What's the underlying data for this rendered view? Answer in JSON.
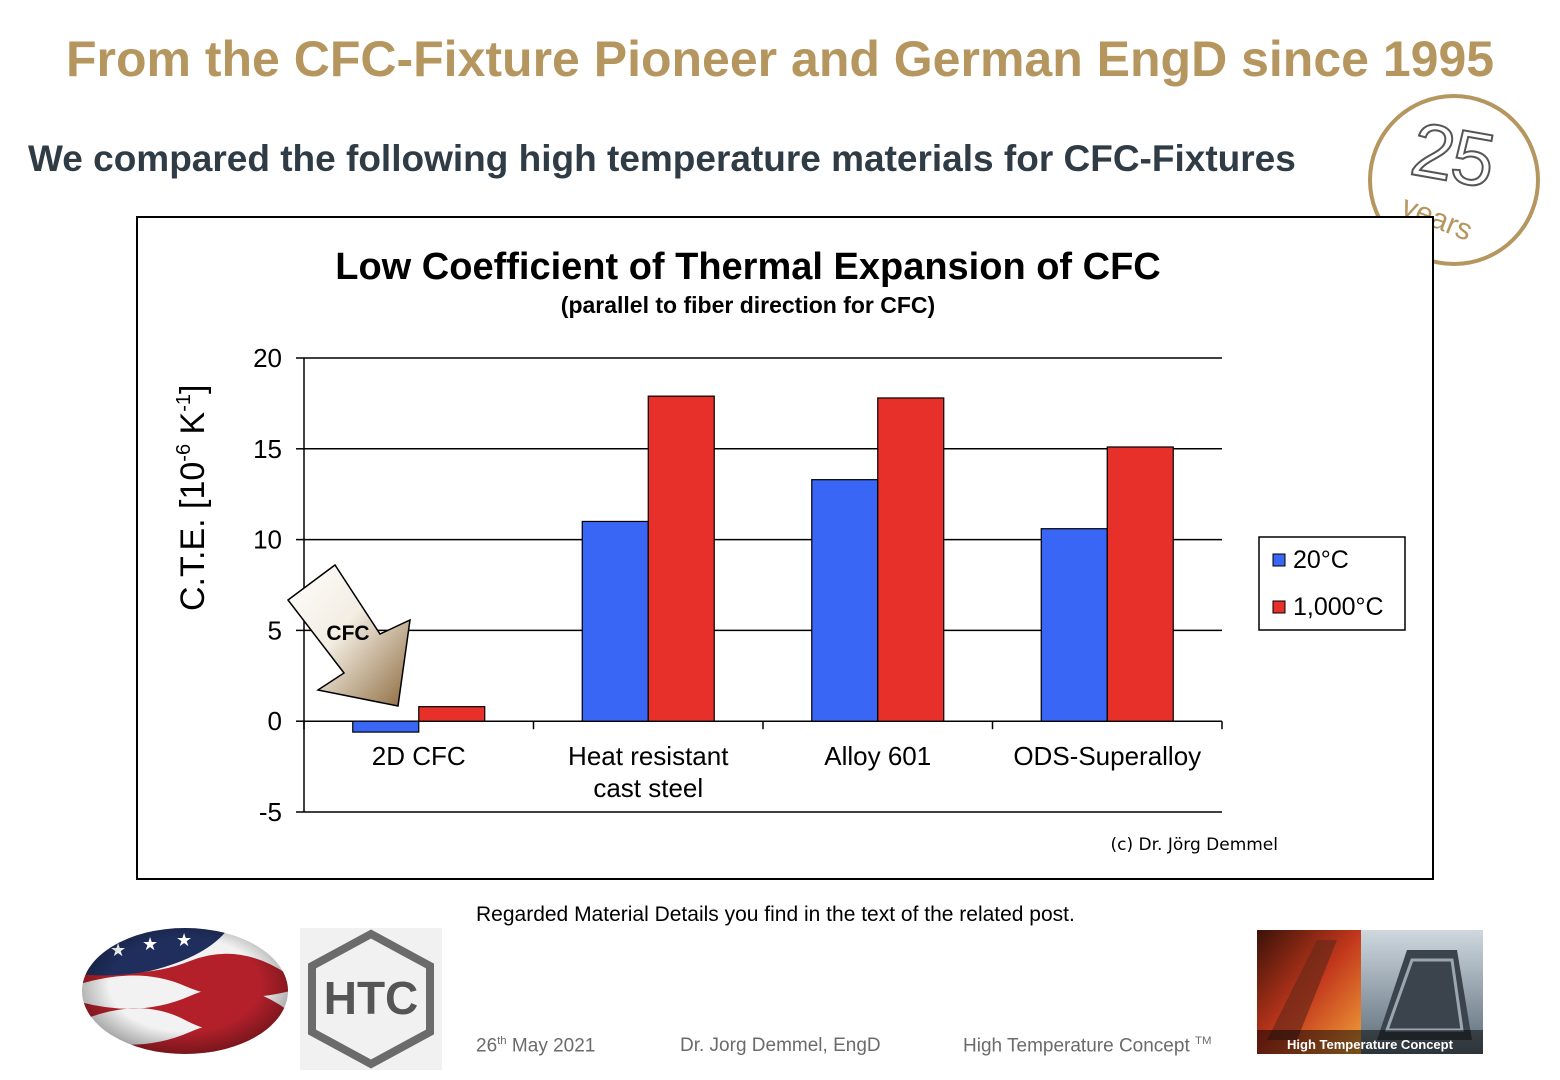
{
  "headline": "From the CFC-Fixture Pioneer and German EngD since 1995",
  "subheadline": "We compared the following high temperature materials for CFC-Fixtures",
  "badge": {
    "number": "25",
    "label": "years"
  },
  "chart_data": {
    "type": "bar",
    "title": "Low Coefficient of Thermal Expansion of CFC",
    "subtitle": "(parallel to fiber direction for CFC)",
    "ylabel_main": "C.T.E. [10",
    "ylabel_exp1": "-6",
    "ylabel_mid": " K",
    "ylabel_exp2": "-1",
    "ylabel_end": "]",
    "categories": [
      [
        "2D CFC"
      ],
      [
        "Heat resistant",
        "cast steel"
      ],
      [
        "Alloy 601"
      ],
      [
        "ODS-Superalloy"
      ]
    ],
    "series": [
      {
        "name": "20°C",
        "color": "#3a66f5",
        "values": [
          -0.6,
          11.0,
          13.3,
          10.6
        ]
      },
      {
        "name": "1,000°C",
        "color": "#e8302a",
        "values": [
          0.8,
          17.9,
          17.8,
          15.1
        ]
      }
    ],
    "ylim": [
      -5,
      20
    ],
    "yticks": [
      -5,
      0,
      5,
      10,
      15,
      20
    ],
    "grid": true,
    "legend_position": "right",
    "annotation": "CFC",
    "copyright": "(c) Dr. Jörg Demmel"
  },
  "note": "Regarded Material Details you find in the text of the related post.",
  "footer": {
    "date_day": "26",
    "date_suffix": "th",
    "date_rest": " May 2021",
    "author": "Dr. Jorg Demmel, EngD",
    "company": "High Temperature Concept",
    "company_tm": "TM"
  },
  "logos": {
    "htc_text": "HTC",
    "photo_caption": "High Temperature Concept"
  }
}
